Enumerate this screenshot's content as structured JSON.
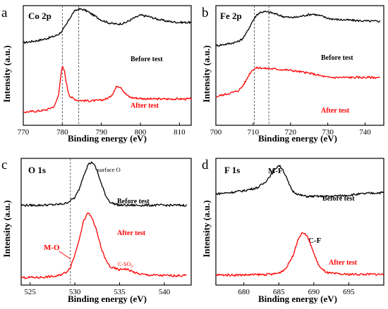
{
  "chart_data": [
    {
      "type": "line",
      "panel_label": "a",
      "title": "Co 2p",
      "xlabel": "Binding energy (eV)",
      "ylabel": "Intensity (a.u.)",
      "xlim": [
        770,
        813
      ],
      "xticks": [
        770,
        780,
        790,
        800,
        810
      ],
      "ylim": [
        0,
        10
      ],
      "vlines": [
        780,
        784.2
      ],
      "series": [
        {
          "name": "Before test",
          "color": "#000000",
          "x": [
            770,
            772,
            774,
            776,
            778,
            779,
            780,
            781,
            782,
            783,
            784,
            785,
            786,
            788,
            790,
            792,
            794,
            796,
            798,
            800,
            802,
            804,
            806,
            808,
            810,
            813
          ],
          "y": [
            6.9,
            7.0,
            7.1,
            7.25,
            7.45,
            7.6,
            7.9,
            8.4,
            9.0,
            9.5,
            9.7,
            9.7,
            9.6,
            9.2,
            8.8,
            8.55,
            8.45,
            8.55,
            8.9,
            9.2,
            9.1,
            8.9,
            8.75,
            8.65,
            8.6,
            8.6
          ]
        },
        {
          "name": "After test",
          "color": "#ff0000",
          "x": [
            770,
            772,
            774,
            776,
            778,
            779,
            779.5,
            780,
            780.5,
            781,
            781.5,
            782,
            783,
            784,
            786,
            788,
            790,
            792,
            793,
            794,
            795,
            796,
            797,
            798,
            800,
            802,
            805,
            808,
            810,
            813
          ],
          "y": [
            1.1,
            1.15,
            1.2,
            1.3,
            1.6,
            2.5,
            3.9,
            4.9,
            4.6,
            3.6,
            2.8,
            2.4,
            2.2,
            2.1,
            2.05,
            2.05,
            2.1,
            2.3,
            2.7,
            3.3,
            3.2,
            2.7,
            2.4,
            2.3,
            2.25,
            2.2,
            2.2,
            2.2,
            2.2,
            2.2
          ]
        }
      ]
    },
    {
      "type": "line",
      "panel_label": "b",
      "title": "Fe 2p",
      "xlabel": "Binding energy (eV)",
      "ylabel": "Intensity (a.u.)",
      "xlim": [
        700,
        745
      ],
      "xticks": [
        700,
        710,
        720,
        730,
        740
      ],
      "ylim": [
        0,
        10
      ],
      "vlines": [
        710.3,
        714.2
      ],
      "series": [
        {
          "name": "Before test",
          "color": "#000000",
          "x": [
            700,
            702,
            704,
            706,
            707,
            708,
            709,
            710,
            711,
            712,
            713,
            714,
            715,
            716,
            718,
            720,
            722,
            724,
            726,
            728,
            730,
            732,
            735,
            738,
            741,
            744
          ],
          "y": [
            6.65,
            6.75,
            6.85,
            7.0,
            7.2,
            7.6,
            8.2,
            8.8,
            9.25,
            9.45,
            9.5,
            9.45,
            9.4,
            9.3,
            9.1,
            9.0,
            9.05,
            9.2,
            9.3,
            9.15,
            8.95,
            8.85,
            8.8,
            8.75,
            8.7,
            8.7
          ]
        },
        {
          "name": "After test",
          "color": "#ff0000",
          "x": [
            700,
            702,
            704,
            706,
            707,
            708,
            709,
            710,
            711,
            712,
            713,
            714,
            716,
            718,
            720,
            722,
            724,
            726,
            728,
            730,
            733,
            736,
            740,
            744
          ],
          "y": [
            2.4,
            2.55,
            2.7,
            2.9,
            3.2,
            3.7,
            4.3,
            4.7,
            4.8,
            4.8,
            4.75,
            4.75,
            4.7,
            4.65,
            4.6,
            4.5,
            4.4,
            4.3,
            4.15,
            4.0,
            4.0,
            4.0,
            4.0,
            4.0
          ]
        }
      ]
    },
    {
      "type": "line",
      "panel_label": "c",
      "title": "O 1s",
      "xlabel": "Binding energy (eV)",
      "ylabel": "Intensity (a.u.)",
      "xlim": [
        524,
        543
      ],
      "xticks": [
        525,
        530,
        535,
        540
      ],
      "ylim": [
        0,
        10
      ],
      "vlines": [
        529.5
      ],
      "annotations": [
        "surface O",
        "M-O",
        "C-SO",
        "3"
      ],
      "series": [
        {
          "name": "Before test",
          "color": "#000000",
          "x": [
            524,
            526,
            528,
            529,
            530,
            530.5,
            531,
            531.5,
            532,
            532.5,
            533,
            533.5,
            534,
            535,
            536,
            538,
            540,
            542.5
          ],
          "y": [
            6.3,
            6.3,
            6.35,
            6.45,
            6.9,
            7.6,
            8.7,
            9.55,
            9.7,
            9.0,
            7.9,
            7.0,
            6.5,
            6.3,
            6.3,
            6.3,
            6.3,
            6.3
          ]
        },
        {
          "name": "After test",
          "color": "#ff0000",
          "x": [
            524,
            526,
            528,
            529,
            529.5,
            530,
            530.5,
            531,
            531.5,
            532,
            532.5,
            533,
            533.5,
            534,
            535,
            535.5,
            536,
            537,
            538,
            540,
            542.5
          ],
          "y": [
            0.6,
            0.6,
            0.7,
            1.0,
            1.4,
            2.4,
            3.7,
            5.1,
            5.7,
            5.2,
            4.1,
            2.8,
            1.9,
            1.4,
            1.2,
            1.3,
            1.2,
            0.9,
            0.8,
            0.75,
            0.75
          ]
        }
      ]
    },
    {
      "type": "line",
      "panel_label": "d",
      "title": "F 1s",
      "xlabel": "Binding energy (eV)",
      "ylabel": "Intensity (a.u.)",
      "xlim": [
        676,
        700
      ],
      "xticks": [
        680,
        685,
        690,
        695
      ],
      "ylim": [
        0,
        10
      ],
      "annotations": [
        "M-F",
        "C-F"
      ],
      "series": [
        {
          "name": "Before test",
          "color": "#000000",
          "x": [
            676,
            678,
            680,
            682,
            683,
            684,
            684.5,
            685,
            685.5,
            686,
            686.5,
            687,
            688,
            689,
            690,
            692,
            694,
            696,
            698,
            700
          ],
          "y": [
            7.2,
            7.3,
            7.45,
            7.7,
            8.1,
            8.8,
            9.2,
            9.45,
            9.2,
            8.6,
            7.9,
            7.4,
            7.1,
            7.0,
            7.0,
            7.0,
            7.05,
            7.15,
            7.25,
            7.3
          ]
        },
        {
          "name": "After test",
          "color": "#ff0000",
          "x": [
            676,
            680,
            684,
            685,
            686,
            687,
            687.5,
            688,
            688.5,
            689,
            689.5,
            690,
            690.5,
            691,
            692,
            694,
            696,
            700
          ],
          "y": [
            0.8,
            0.8,
            0.85,
            0.95,
            1.3,
            2.3,
            3.2,
            3.9,
            4.15,
            3.9,
            3.3,
            2.5,
            1.8,
            1.3,
            0.95,
            0.85,
            0.85,
            0.85
          ]
        }
      ]
    }
  ],
  "labels": {
    "before": "Before test",
    "after": "After test",
    "surface_o": "surface O",
    "m_o": "M-O",
    "c_so": "C-SO",
    "c_so_sub": "3",
    "m_f": "M-F",
    "c_f": "C-F"
  }
}
